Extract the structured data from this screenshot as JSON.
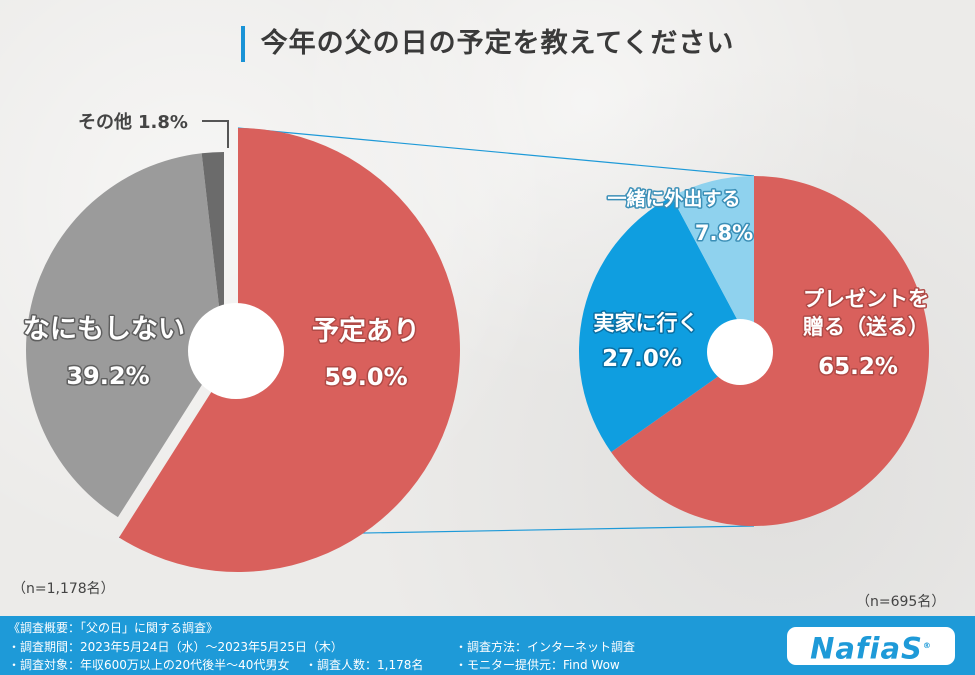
{
  "title": "今年の父の日の予定を教えてください",
  "chart_data": [
    {
      "type": "pie",
      "n_label": "（n=1,178名）",
      "slices": [
        {
          "label": "予定あり",
          "value": 59.0,
          "value_label": "59.0%",
          "color": "#d9605c"
        },
        {
          "label": "なにもしない",
          "value": 39.2,
          "value_label": "39.2%",
          "color": "#9b9b9b"
        },
        {
          "label": "その他",
          "value": 1.8,
          "value_label": "1.8%",
          "color": "#6b6b6b"
        }
      ]
    },
    {
      "type": "pie",
      "n_label": "（n=695名）",
      "slices": [
        {
          "label": "プレゼントを贈る（送る）",
          "label_lines": [
            "プレゼントを",
            "贈る（送る）"
          ],
          "value": 65.2,
          "value_label": "65.2%",
          "color": "#d9605c"
        },
        {
          "label": "実家に行く",
          "label_lines": [
            "実家に行く"
          ],
          "value": 27.0,
          "value_label": "27.0%",
          "color": "#0f9ee0"
        },
        {
          "label": "一緒に外出する",
          "label_lines": [
            "一緒に外出する"
          ],
          "value": 7.8,
          "value_label": "7.8%",
          "color": "#8fd2ee"
        }
      ]
    }
  ],
  "footer": {
    "summary": "《調査概要：「父の日」に関する調査》",
    "period": "・調査期間：2023年5月24日（水）～2023年5月25日（木）",
    "method": "・調査方法：インターネット調査",
    "target": "・調査対象：年収600万以上の20代後半～40代男女",
    "count": "・調査人数：1,178名",
    "provider": "・モニター提供元：Find Wow"
  },
  "logo": {
    "text": "NafiaS",
    "mark": "®"
  }
}
